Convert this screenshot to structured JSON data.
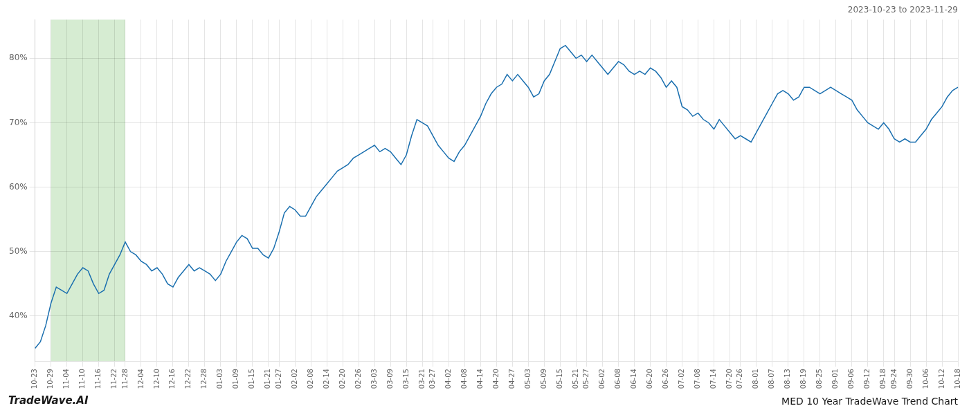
{
  "chart_data": {
    "type": "line",
    "title": "MED 10 Year TradeWave Trend Chart",
    "subtitle": "2023-10-23 to 2023-11-29",
    "annotations": [
      "TradeWave.AI"
    ],
    "categories": [
      "10-23",
      null,
      null,
      "10-29",
      null,
      null,
      "11-04",
      null,
      null,
      "11-10",
      null,
      null,
      "11-16",
      null,
      null,
      "11-22",
      null,
      "11-28",
      null,
      null,
      "12-04",
      null,
      null,
      "12-10",
      null,
      null,
      "12-16",
      null,
      null,
      "12-22",
      null,
      null,
      "12-28",
      null,
      null,
      "01-03",
      null,
      null,
      "01-09",
      null,
      null,
      "01-15",
      null,
      null,
      "01-21",
      null,
      "01-27",
      null,
      null,
      "02-02",
      null,
      null,
      "02-08",
      null,
      null,
      "02-14",
      null,
      null,
      "02-20",
      null,
      null,
      "02-26",
      null,
      null,
      "03-03",
      null,
      null,
      "03-09",
      null,
      null,
      "03-15",
      null,
      null,
      "03-21",
      null,
      "03-27",
      null,
      null,
      "04-02",
      null,
      null,
      "04-08",
      null,
      null,
      "04-14",
      null,
      null,
      "04-20",
      null,
      null,
      "04-27",
      null,
      null,
      "05-03",
      null,
      null,
      "05-09",
      null,
      null,
      "05-15",
      null,
      null,
      "05-21",
      null,
      "05-27",
      null,
      null,
      "06-02",
      null,
      null,
      "06-08",
      null,
      null,
      "06-14",
      null,
      null,
      "06-20",
      null,
      null,
      "06-26",
      null,
      null,
      "07-02",
      null,
      null,
      "07-08",
      null,
      null,
      "07-14",
      null,
      null,
      "07-20",
      null,
      "07-26",
      null,
      null,
      "08-01",
      null,
      null,
      "08-07",
      null,
      null,
      "08-13",
      null,
      null,
      "08-19",
      null,
      null,
      "08-25",
      null,
      null,
      "09-01",
      null,
      null,
      "09-06",
      null,
      null,
      "09-12",
      null,
      null,
      "09-18",
      null,
      "09-24",
      null,
      null,
      "09-30",
      null,
      null,
      "10-06",
      null,
      null,
      "10-12",
      null,
      null,
      "10-18"
    ],
    "values": [
      35.0,
      36.0,
      38.5,
      42.0,
      44.5,
      44.0,
      43.5,
      45.0,
      46.5,
      47.5,
      47.0,
      45.0,
      43.5,
      44.0,
      46.5,
      48.0,
      49.5,
      51.5,
      50.0,
      49.5,
      48.5,
      48.0,
      47.0,
      47.5,
      46.5,
      45.0,
      44.5,
      46.0,
      47.0,
      48.0,
      47.0,
      47.5,
      47.0,
      46.5,
      45.5,
      46.5,
      48.5,
      50.0,
      51.5,
      52.5,
      52.0,
      50.5,
      50.5,
      49.5,
      49.0,
      50.5,
      53.0,
      56.0,
      57.0,
      56.5,
      55.5,
      55.5,
      57.0,
      58.5,
      59.5,
      60.5,
      61.5,
      62.5,
      63.0,
      63.5,
      64.5,
      65.0,
      65.5,
      66.0,
      66.5,
      65.5,
      66.0,
      65.5,
      64.5,
      63.5,
      65.0,
      68.0,
      70.5,
      70.0,
      69.5,
      68.0,
      66.5,
      65.5,
      64.5,
      64.0,
      65.5,
      66.5,
      68.0,
      69.5,
      71.0,
      73.0,
      74.5,
      75.5,
      76.0,
      77.5,
      76.5,
      77.5,
      76.5,
      75.5,
      74.0,
      74.5,
      76.5,
      77.5,
      79.5,
      81.5,
      82.0,
      81.0,
      80.0,
      80.5,
      79.5,
      80.5,
      79.5,
      78.5,
      77.5,
      78.5,
      79.5,
      79.0,
      78.0,
      77.5,
      78.0,
      77.5,
      78.5,
      78.0,
      77.0,
      75.5,
      76.5,
      75.5,
      72.5,
      72.0,
      71.0,
      71.5,
      70.5,
      70.0,
      69.0,
      70.5,
      69.5,
      68.5,
      67.5,
      68.0,
      67.5,
      67.0,
      68.5,
      70.0,
      71.5,
      73.0,
      74.5,
      75.0,
      74.5,
      73.5,
      74.0,
      75.5,
      75.5,
      75.0,
      74.5,
      75.0,
      75.5,
      75.0,
      74.5,
      74.0,
      73.5,
      72.0,
      71.0,
      70.0,
      69.5,
      69.0,
      70.0,
      69.0,
      67.5,
      67.0,
      67.5,
      67.0,
      67.0,
      68.0,
      69.0,
      70.5,
      71.5,
      72.5,
      74.0,
      75.0,
      75.5
    ],
    "color": "#1a6faf",
    "highlight": {
      "start": "10-29",
      "end": "11-28",
      "color": "#d6ecd2"
    },
    "ylim": [
      33,
      86
    ],
    "yticks": [
      {
        "value": 40,
        "label": "40%"
      },
      {
        "value": 50,
        "label": "50%"
      },
      {
        "value": 60,
        "label": "60%"
      },
      {
        "value": 70,
        "label": "70%"
      },
      {
        "value": 80,
        "label": "80%"
      }
    ],
    "grid": true
  }
}
